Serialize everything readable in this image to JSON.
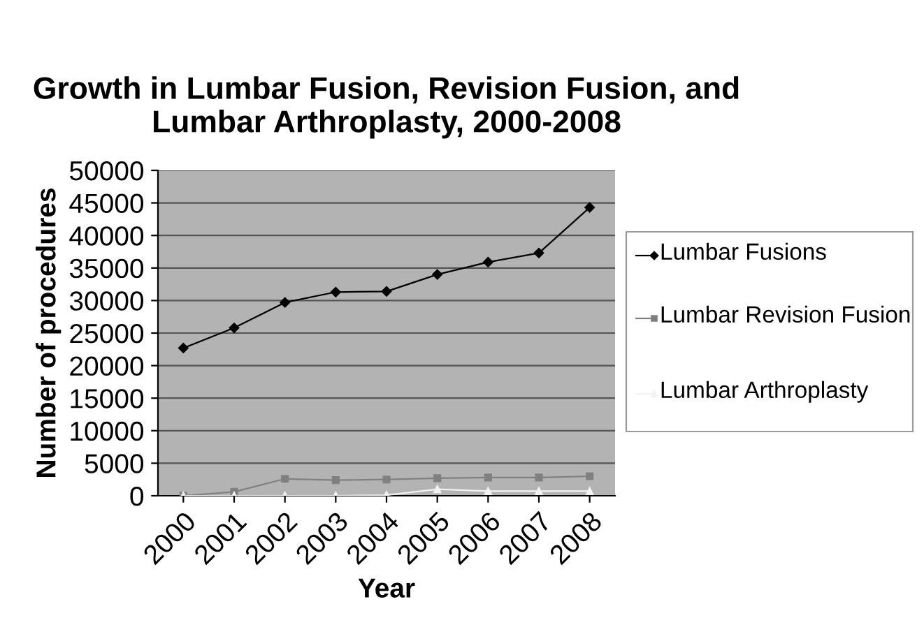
{
  "chart_data": {
    "type": "line",
    "title": "Growth in Lumbar Fusion, Revision Fusion, and Lumbar Arthroplasty, 2000-2008",
    "xlabel": "Year",
    "ylabel": "Number of procedures",
    "categories": [
      "2000",
      "2001",
      "2002",
      "2003",
      "2004",
      "2005",
      "2006",
      "2007",
      "2008"
    ],
    "series": [
      {
        "name": "Lumbar Fusions",
        "color": "#000000",
        "marker": "diamond",
        "values": [
          22700,
          25800,
          29700,
          31300,
          31400,
          34000,
          35900,
          37300,
          44300
        ]
      },
      {
        "name": "Lumbar Revision Fusion",
        "color": "#808080",
        "marker": "square",
        "values": [
          0,
          600,
          2600,
          2400,
          2500,
          2700,
          2800,
          2800,
          3000
        ]
      },
      {
        "name": "Lumbar Arthroplasty",
        "color": "#f2f2f2",
        "marker": "triangle",
        "values": [
          0,
          0,
          0,
          0,
          100,
          1000,
          700,
          700,
          700
        ]
      }
    ],
    "ylim": [
      0,
      50000
    ],
    "yticks": [
      0,
      5000,
      10000,
      15000,
      20000,
      25000,
      30000,
      35000,
      40000,
      45000,
      50000
    ],
    "grid": "y",
    "legend": "right",
    "line_style": "solid"
  }
}
